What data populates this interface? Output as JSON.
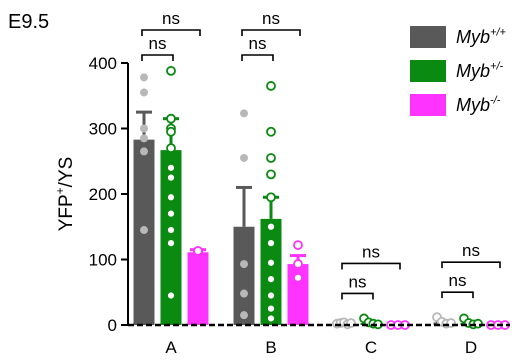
{
  "chart_data": {
    "type": "bar",
    "panel_label": "E9.5",
    "ylabel": "YFP+/YS",
    "ylabel_parts": {
      "base": "YFP",
      "sup": "+",
      "rest": "/YS"
    },
    "categories": [
      "A",
      "B",
      "C",
      "D"
    ],
    "ylim": [
      0,
      400
    ],
    "yticks": [
      0,
      100,
      200,
      300,
      400
    ],
    "grid": false,
    "legend_position": "top-right",
    "series": [
      {
        "name": "Myb+/+",
        "name_parts": {
          "base": "Myb",
          "sup": "+/+"
        },
        "color": "#595959",
        "point_color": "#b8b8b8",
        "values": [
          283,
          150,
          2,
          4
        ],
        "errors": [
          42,
          60,
          1,
          2
        ],
        "points": [
          [
            378,
            355,
            300,
            285,
            265,
            145
          ],
          [
            323,
            255,
            93,
            48,
            15
          ],
          [
            2,
            3,
            4,
            1,
            3
          ],
          [
            12,
            5,
            2,
            3
          ]
        ]
      },
      {
        "name": "Myb+/-",
        "name_parts": {
          "base": "Myb",
          "sup": "+/-"
        },
        "color": "#0a8a10",
        "point_color": "#0a8a10",
        "values": [
          267,
          162,
          3,
          3
        ],
        "errors": [
          48,
          33,
          1,
          1
        ],
        "points": [
          [
            388,
            315,
            300,
            295,
            270,
            240,
            225,
            195,
            170,
            145,
            125,
            45
          ],
          [
            365,
            295,
            255,
            230,
            195,
            150,
            125,
            95,
            70,
            45,
            25,
            10
          ],
          [
            10,
            4,
            2,
            1
          ],
          [
            10,
            3,
            1,
            2
          ]
        ]
      },
      {
        "name": "Myb-/-",
        "name_parts": {
          "base": "Myb",
          "sup": "-/-"
        },
        "color": "#ff33ff",
        "point_color": "#ff33ff",
        "values": [
          111,
          93,
          0,
          0
        ],
        "errors": [
          4,
          13,
          0,
          0
        ],
        "points": [
          [
            113,
            112,
            113
          ],
          [
            122,
            93,
            72
          ],
          [
            0,
            0,
            0
          ],
          [
            0,
            0,
            0
          ]
        ]
      }
    ],
    "comparisons": [
      {
        "category": "A",
        "from": 0,
        "to": 1,
        "label": "ns"
      },
      {
        "category": "A",
        "from": 0,
        "to": 2,
        "label": "ns"
      },
      {
        "category": "B",
        "from": 0,
        "to": 1,
        "label": "ns"
      },
      {
        "category": "B",
        "from": 0,
        "to": 2,
        "label": "ns"
      },
      {
        "category": "C",
        "from": 0,
        "to": 1,
        "label": "ns"
      },
      {
        "category": "C",
        "from": 0,
        "to": 2,
        "label": "ns"
      },
      {
        "category": "D",
        "from": 0,
        "to": 1,
        "label": "ns"
      },
      {
        "category": "D",
        "from": 0,
        "to": 2,
        "label": "ns"
      }
    ]
  }
}
